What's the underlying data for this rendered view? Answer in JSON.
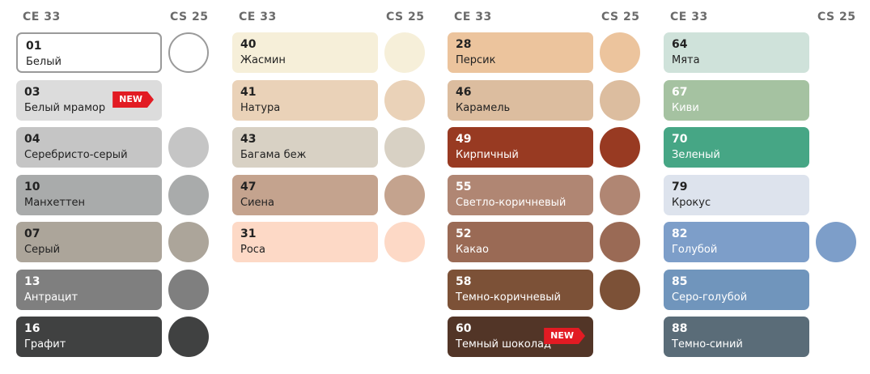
{
  "headers": {
    "ce": "CE 33",
    "cs": "CS 25"
  },
  "new_label": "NEW",
  "columns": [
    {
      "items": [
        {
          "code": "01",
          "name": "Белый",
          "color": "#ffffff",
          "text": "#222222",
          "circle": true,
          "outlined": true
        },
        {
          "code": "03",
          "name": "Белый мрамор",
          "color": "#dcdcdc",
          "text": "#222222",
          "circle": false,
          "new": true
        },
        {
          "code": "04",
          "name": "Серебристо-серый",
          "color": "#c5c5c5",
          "text": "#222222",
          "circle": true
        },
        {
          "code": "10",
          "name": "Манхеттен",
          "color": "#a9abab",
          "text": "#222222",
          "circle": true
        },
        {
          "code": "07",
          "name": "Серый",
          "color": "#aca59a",
          "text": "#222222",
          "circle": true
        },
        {
          "code": "13",
          "name": "Антрацит",
          "color": "#7f7f7f",
          "text": "#ffffff",
          "circle": true
        },
        {
          "code": "16",
          "name": "Графит",
          "color": "#404141",
          "text": "#ffffff",
          "circle": true
        }
      ]
    },
    {
      "items": [
        {
          "code": "40",
          "name": "Жасмин",
          "color": "#f6efd9",
          "text": "#222222",
          "circle": true
        },
        {
          "code": "41",
          "name": "Натура",
          "color": "#ead2b8",
          "text": "#222222",
          "circle": true
        },
        {
          "code": "43",
          "name": "Багама беж",
          "color": "#d8d1c4",
          "text": "#222222",
          "circle": true
        },
        {
          "code": "47",
          "name": "Сиена",
          "color": "#c4a38e",
          "text": "#222222",
          "circle": true
        },
        {
          "code": "31",
          "name": "Роса",
          "color": "#fdd9c6",
          "text": "#222222",
          "circle": true
        }
      ]
    },
    {
      "items": [
        {
          "code": "28",
          "name": "Персик",
          "color": "#ecc49d",
          "text": "#222222",
          "circle": true
        },
        {
          "code": "46",
          "name": "Карамель",
          "color": "#dcbd9f",
          "text": "#222222",
          "circle": true
        },
        {
          "code": "49",
          "name": "Кирпичный",
          "color": "#983a22",
          "text": "#ffffff",
          "circle": true
        },
        {
          "code": "55",
          "name": "Светло-коричневый",
          "color": "#b08673",
          "text": "#ffffff",
          "circle": true
        },
        {
          "code": "52",
          "name": "Какао",
          "color": "#9a6a55",
          "text": "#ffffff",
          "circle": true
        },
        {
          "code": "58",
          "name": "Темно-коричневый",
          "color": "#7c5137",
          "text": "#ffffff",
          "circle": true
        },
        {
          "code": "60",
          "name": "Темный шоколад",
          "color": "#523527",
          "text": "#ffffff",
          "circle": false,
          "new": true
        }
      ]
    },
    {
      "items": [
        {
          "code": "64",
          "name": "Мята",
          "color": "#cfe2da",
          "text": "#222222",
          "circle": false
        },
        {
          "code": "67",
          "name": "Киви",
          "color": "#a5c2a1",
          "text": "#ffffff",
          "circle": false
        },
        {
          "code": "70",
          "name": "Зеленый",
          "color": "#46a685",
          "text": "#ffffff",
          "circle": false
        },
        {
          "code": "79",
          "name": "Крокус",
          "color": "#dde3ed",
          "text": "#222222",
          "circle": false
        },
        {
          "code": "82",
          "name": "Голубой",
          "color": "#7d9ec9",
          "text": "#ffffff",
          "circle": true
        },
        {
          "code": "85",
          "name": "Серо-голубой",
          "color": "#7095bc",
          "text": "#ffffff",
          "circle": false
        },
        {
          "code": "88",
          "name": "Темно-синий",
          "color": "#5a6c78",
          "text": "#ffffff",
          "circle": false
        }
      ]
    }
  ]
}
